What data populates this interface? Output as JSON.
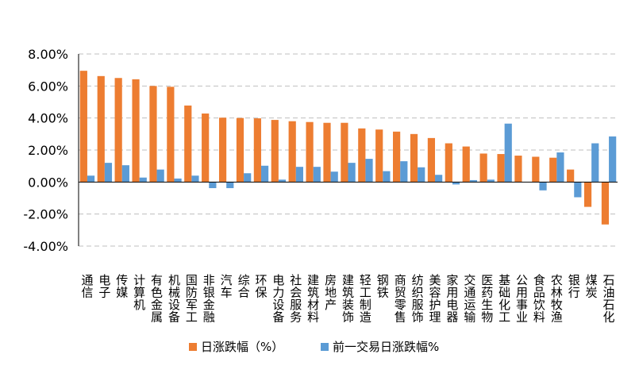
{
  "chart_data": {
    "type": "bar",
    "categories": [
      "通信",
      "电子",
      "传媒",
      "计算机",
      "有色金属",
      "机械设备",
      "国防军工",
      "非银金融",
      "汽车",
      "综合",
      "环保",
      "电力设备",
      "社会服务",
      "建筑材料",
      "房地产",
      "建筑装饰",
      "轻工制造",
      "钢铁",
      "商贸零售",
      "纺织服饰",
      "美容护理",
      "家用电器",
      "交通运输",
      "医药生物",
      "基础化工",
      "公用事业",
      "食品饮料",
      "农林牧渔",
      "银行",
      "煤炭",
      "石油石化"
    ],
    "series": [
      {
        "name": "日涨跌幅（%）",
        "color": "#ED7D31",
        "values": [
          6.95,
          6.62,
          6.5,
          6.42,
          6.0,
          5.95,
          4.78,
          4.28,
          4.02,
          4.0,
          3.98,
          3.88,
          3.8,
          3.75,
          3.7,
          3.7,
          3.35,
          3.28,
          3.15,
          3.0,
          2.75,
          2.42,
          2.22,
          1.78,
          1.75,
          1.65,
          1.58,
          1.52,
          0.78,
          -1.55,
          -2.65
        ]
      },
      {
        "name": "前一交易日涨跌幅%",
        "color": "#5B9BD5",
        "values": [
          0.4,
          1.2,
          1.05,
          0.28,
          0.78,
          0.22,
          0.4,
          -0.38,
          -0.38,
          0.55,
          1.02,
          0.15,
          0.95,
          0.95,
          0.65,
          1.2,
          1.45,
          0.68,
          1.3,
          0.92,
          0.45,
          -0.15,
          0.12,
          0.15,
          3.65,
          0.0,
          -0.52,
          1.85,
          -0.95,
          2.42,
          2.85
        ]
      }
    ],
    "yticks": [
      "8.00%",
      "6.00%",
      "4.00%",
      "2.00%",
      "0.00%",
      "-2.00%",
      "-4.00%"
    ],
    "ylim": [
      -4,
      8
    ],
    "grid": true,
    "legend": "bottom"
  }
}
